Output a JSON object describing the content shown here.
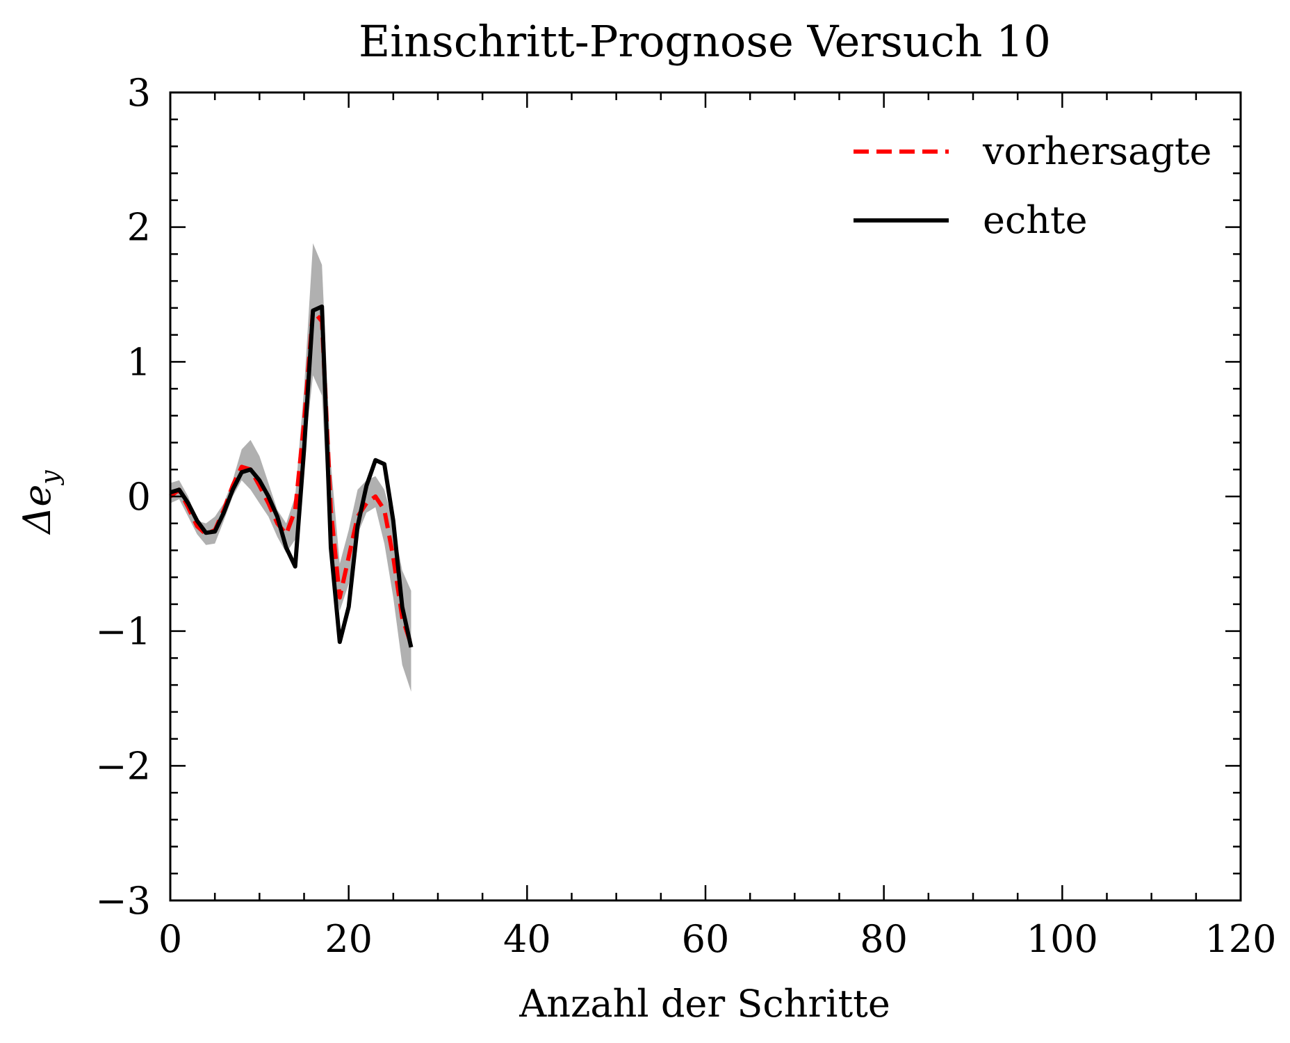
{
  "chart_data": {
    "type": "line",
    "title": "Einschritt-Prognose Versuch 10",
    "xlabel": "Anzahl der Schritte",
    "ylabel": "Δe",
    "ylabel_sub": "y",
    "xlim": [
      0,
      120
    ],
    "ylim": [
      -3,
      3
    ],
    "xticks": [
      0,
      20,
      40,
      60,
      80,
      100,
      120
    ],
    "xtick_labels": [
      "0",
      "20",
      "40",
      "60",
      "80",
      "100",
      "120"
    ],
    "yticks": [
      -3,
      -2,
      -1,
      0,
      1,
      2,
      3
    ],
    "ytick_labels": [
      "−3",
      "−2",
      "−1",
      "0",
      "1",
      "2",
      "3"
    ],
    "grid": false,
    "legend_position": "top-right",
    "x": [
      0,
      1,
      2,
      3,
      4,
      5,
      6,
      7,
      8,
      9,
      10,
      11,
      12,
      13,
      14,
      15,
      16,
      17,
      18,
      19,
      20,
      21,
      22,
      23,
      24,
      25,
      26,
      27
    ],
    "band": {
      "color": "#b0b0b0",
      "lower": [
        -0.05,
        -0.02,
        -0.15,
        -0.28,
        -0.36,
        -0.35,
        -0.18,
        0.0,
        0.12,
        0.05,
        -0.05,
        -0.15,
        -0.3,
        -0.42,
        -0.32,
        0.3,
        0.9,
        0.75,
        -0.5,
        -0.85,
        -0.65,
        -0.28,
        -0.12,
        -0.08,
        -0.35,
        -0.75,
        -1.25,
        -1.45
      ],
      "upper": [
        0.1,
        0.12,
        0.0,
        -0.18,
        -0.2,
        -0.15,
        -0.05,
        0.12,
        0.35,
        0.42,
        0.3,
        0.1,
        -0.1,
        -0.2,
        0.0,
        0.8,
        1.88,
        1.72,
        0.25,
        -0.5,
        -0.25,
        0.05,
        0.12,
        0.15,
        0.05,
        -0.2,
        -0.55,
        -0.7
      ]
    },
    "series": [
      {
        "name": "vorhersagte",
        "color": "#ff0000",
        "style": "dashed",
        "values": [
          0.0,
          0.05,
          -0.08,
          -0.22,
          -0.28,
          -0.25,
          -0.1,
          0.08,
          0.22,
          0.2,
          0.08,
          -0.05,
          -0.2,
          -0.28,
          -0.1,
          0.55,
          1.38,
          1.3,
          -0.1,
          -0.75,
          -0.45,
          -0.15,
          -0.05,
          0.0,
          -0.1,
          -0.45,
          -0.9,
          -1.1
        ]
      },
      {
        "name": "echte",
        "color": "#000000",
        "style": "solid",
        "values": [
          0.03,
          0.05,
          -0.05,
          -0.18,
          -0.27,
          -0.26,
          -0.12,
          0.05,
          0.18,
          0.2,
          0.12,
          0.0,
          -0.15,
          -0.38,
          -0.52,
          0.35,
          1.38,
          1.41,
          -0.38,
          -1.08,
          -0.82,
          -0.22,
          0.08,
          0.27,
          0.24,
          -0.18,
          -0.82,
          -1.12
        ]
      }
    ]
  }
}
